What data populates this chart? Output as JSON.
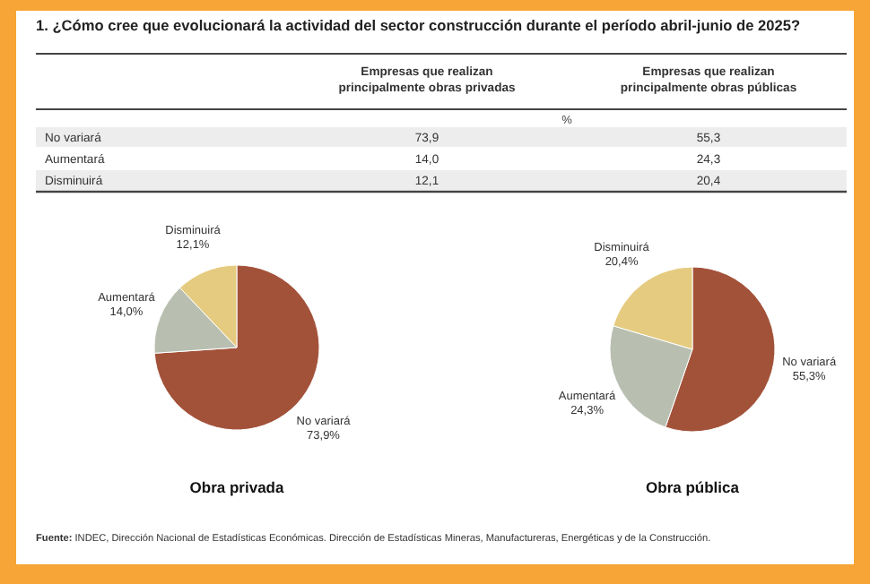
{
  "chart_data": [
    {
      "type": "other",
      "title": "1. ¿Cómo cree que evolucionará la actividad del sector construcción durante el período abril-junio de 2025?",
      "ylabel": "%",
      "categories": [
        "No variará",
        "Aumentará",
        "Disminuirá"
      ],
      "series": [
        {
          "name": "Empresas que realizan principalmente obras privadas",
          "values": [
            73.9,
            14.0,
            12.1
          ],
          "value_labels": [
            "73,9",
            "14,0",
            "12,1"
          ]
        },
        {
          "name": "Empresas que realizan principalmente obras públicas",
          "values": [
            55.3,
            24.3,
            20.4
          ],
          "value_labels": [
            "55,3",
            "24,3",
            "20,4"
          ]
        }
      ],
      "annotations": [
        "Fuente: INDEC, Dirección Nacional de Estadísticas Económicas. Dirección de Estadísticas Mineras, Manufactureras, Energéticas y de la Construcción."
      ]
    },
    {
      "type": "pie",
      "title": "Obra privada",
      "categories": [
        "No variará",
        "Aumentará",
        "Disminuirá"
      ],
      "values": [
        73.9,
        14.0,
        12.1
      ],
      "colors": [
        "#a3523a",
        "#b9bfb0",
        "#e5cb80"
      ],
      "value_labels": [
        "73,9%",
        "14,0%",
        "12,1%"
      ]
    },
    {
      "type": "pie",
      "title": "Obra pública",
      "categories": [
        "No variará",
        "Aumentará",
        "Disminuirá"
      ],
      "values": [
        55.3,
        24.3,
        20.4
      ],
      "colors": [
        "#a3523a",
        "#b9bfb0",
        "#e5cb80"
      ],
      "value_labels": [
        "55,3%",
        "24,3%",
        "20,4%"
      ]
    }
  ]
}
